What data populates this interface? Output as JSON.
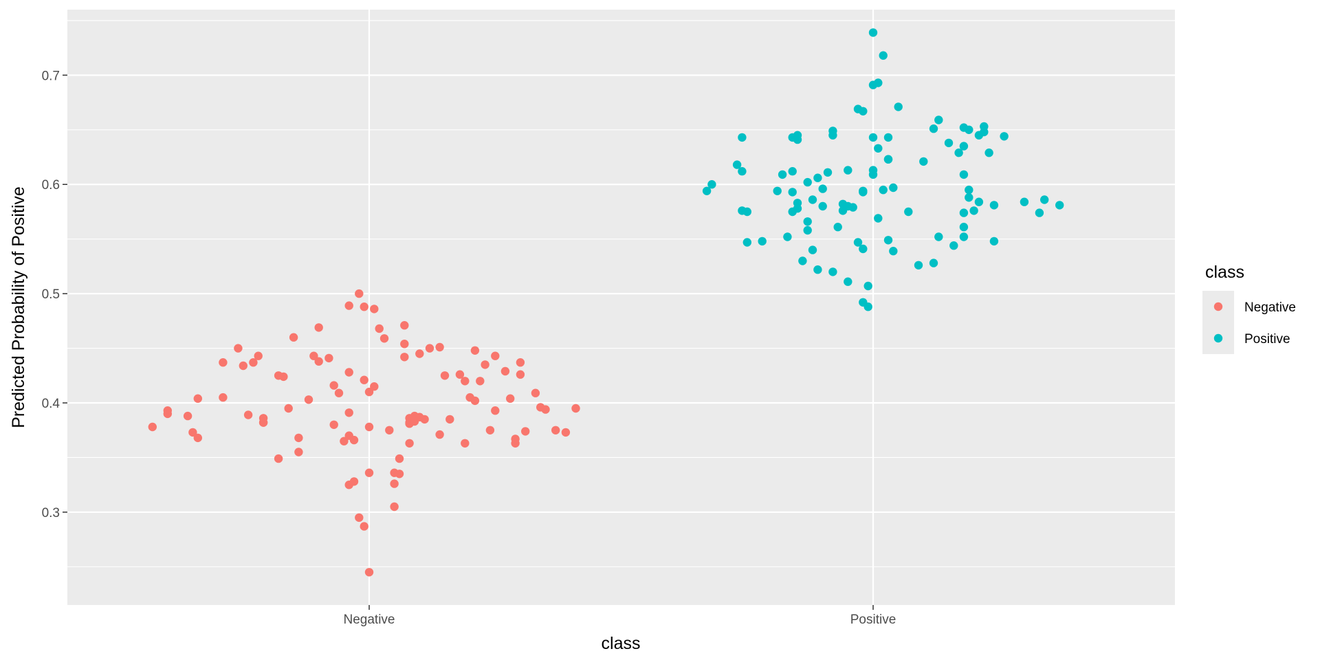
{
  "chart_data": {
    "type": "scatter",
    "title": "",
    "xlabel": "class",
    "ylabel": "Predicted Probability of Positive",
    "x_categories": [
      "Negative",
      "Positive"
    ],
    "ylim": [
      0.215,
      0.76
    ],
    "y_ticks": [
      0.3,
      0.4,
      0.5,
      0.6,
      0.7
    ],
    "y_tick_labels": [
      "0.3",
      "0.4",
      "0.5",
      "0.6",
      "0.7"
    ],
    "grid": true,
    "jitter": true,
    "legend": {
      "title": "class",
      "placement": "right",
      "entries": [
        "Negative",
        "Positive"
      ]
    },
    "colors": {
      "Negative": "#F8766D",
      "Positive": "#00BFC4",
      "panel_background": "#EBEBEB",
      "gridline": "#FFFFFF"
    },
    "series": [
      {
        "name": "Negative",
        "category": "Negative",
        "points": [
          [
            -0.43,
            0.378
          ],
          [
            -0.4,
            0.393
          ],
          [
            -0.4,
            0.39
          ],
          [
            -0.36,
            0.388
          ],
          [
            -0.35,
            0.373
          ],
          [
            -0.34,
            0.368
          ],
          [
            -0.34,
            0.404
          ],
          [
            -0.29,
            0.405
          ],
          [
            -0.29,
            0.437
          ],
          [
            -0.26,
            0.45
          ],
          [
            -0.25,
            0.434
          ],
          [
            -0.24,
            0.389
          ],
          [
            -0.23,
            0.437
          ],
          [
            -0.22,
            0.443
          ],
          [
            -0.21,
            0.382
          ],
          [
            -0.21,
            0.386
          ],
          [
            -0.21,
            0.382
          ],
          [
            -0.18,
            0.425
          ],
          [
            -0.17,
            0.424
          ],
          [
            -0.18,
            0.349
          ],
          [
            -0.16,
            0.395
          ],
          [
            -0.15,
            0.46
          ],
          [
            -0.14,
            0.355
          ],
          [
            -0.14,
            0.368
          ],
          [
            -0.12,
            0.403
          ],
          [
            -0.11,
            0.443
          ],
          [
            -0.1,
            0.469
          ],
          [
            -0.1,
            0.438
          ],
          [
            -0.08,
            0.441
          ],
          [
            -0.07,
            0.416
          ],
          [
            -0.07,
            0.38
          ],
          [
            -0.06,
            0.409
          ],
          [
            -0.05,
            0.365
          ],
          [
            -0.04,
            0.37
          ],
          [
            -0.04,
            0.325
          ],
          [
            -0.04,
            0.428
          ],
          [
            -0.04,
            0.391
          ],
          [
            -0.04,
            0.489
          ],
          [
            -0.03,
            0.366
          ],
          [
            -0.03,
            0.328
          ],
          [
            -0.02,
            0.5
          ],
          [
            -0.02,
            0.295
          ],
          [
            -0.01,
            0.488
          ],
          [
            -0.01,
            0.287
          ],
          [
            -0.01,
            0.421
          ],
          [
            0.0,
            0.378
          ],
          [
            0.0,
            0.41
          ],
          [
            0.0,
            0.336
          ],
          [
            0.0,
            0.245
          ],
          [
            0.01,
            0.486
          ],
          [
            0.01,
            0.415
          ],
          [
            0.02,
            0.468
          ],
          [
            0.03,
            0.459
          ],
          [
            0.04,
            0.375
          ],
          [
            0.05,
            0.305
          ],
          [
            0.05,
            0.326
          ],
          [
            0.05,
            0.336
          ],
          [
            0.06,
            0.335
          ],
          [
            0.06,
            0.349
          ],
          [
            0.07,
            0.471
          ],
          [
            0.07,
            0.442
          ],
          [
            0.07,
            0.454
          ],
          [
            0.08,
            0.363
          ],
          [
            0.08,
            0.386
          ],
          [
            0.08,
            0.381
          ],
          [
            0.08,
            0.382
          ],
          [
            0.09,
            0.383
          ],
          [
            0.09,
            0.388
          ],
          [
            0.09,
            0.384
          ],
          [
            0.09,
            0.386
          ],
          [
            0.1,
            0.387
          ],
          [
            0.1,
            0.445
          ],
          [
            0.11,
            0.385
          ],
          [
            0.12,
            0.45
          ],
          [
            0.14,
            0.451
          ],
          [
            0.14,
            0.371
          ],
          [
            0.15,
            0.425
          ],
          [
            0.16,
            0.385
          ],
          [
            0.18,
            0.426
          ],
          [
            0.19,
            0.363
          ],
          [
            0.19,
            0.42
          ],
          [
            0.2,
            0.405
          ],
          [
            0.21,
            0.448
          ],
          [
            0.21,
            0.402
          ],
          [
            0.22,
            0.42
          ],
          [
            0.23,
            0.435
          ],
          [
            0.24,
            0.375
          ],
          [
            0.25,
            0.443
          ],
          [
            0.25,
            0.393
          ],
          [
            0.27,
            0.429
          ],
          [
            0.28,
            0.404
          ],
          [
            0.29,
            0.363
          ],
          [
            0.29,
            0.367
          ],
          [
            0.3,
            0.426
          ],
          [
            0.3,
            0.437
          ],
          [
            0.31,
            0.374
          ],
          [
            0.33,
            0.409
          ],
          [
            0.34,
            0.396
          ],
          [
            0.35,
            0.394
          ],
          [
            0.37,
            0.375
          ],
          [
            0.39,
            0.373
          ],
          [
            0.41,
            0.395
          ]
        ]
      },
      {
        "name": "Positive",
        "category": "Positive",
        "points": [
          [
            -0.33,
            0.594
          ],
          [
            -0.32,
            0.6
          ],
          [
            -0.27,
            0.618
          ],
          [
            -0.26,
            0.612
          ],
          [
            -0.26,
            0.576
          ],
          [
            -0.26,
            0.643
          ],
          [
            -0.25,
            0.575
          ],
          [
            -0.25,
            0.547
          ],
          [
            -0.22,
            0.548
          ],
          [
            -0.19,
            0.594
          ],
          [
            -0.18,
            0.609
          ],
          [
            -0.17,
            0.552
          ],
          [
            -0.16,
            0.643
          ],
          [
            -0.16,
            0.575
          ],
          [
            -0.16,
            0.593
          ],
          [
            -0.16,
            0.612
          ],
          [
            -0.15,
            0.583
          ],
          [
            -0.15,
            0.578
          ],
          [
            -0.15,
            0.645
          ],
          [
            -0.15,
            0.641
          ],
          [
            -0.14,
            0.53
          ],
          [
            -0.13,
            0.566
          ],
          [
            -0.13,
            0.558
          ],
          [
            -0.13,
            0.602
          ],
          [
            -0.12,
            0.586
          ],
          [
            -0.12,
            0.54
          ],
          [
            -0.11,
            0.606
          ],
          [
            -0.11,
            0.522
          ],
          [
            -0.1,
            0.596
          ],
          [
            -0.1,
            0.58
          ],
          [
            -0.09,
            0.611
          ],
          [
            -0.08,
            0.52
          ],
          [
            -0.08,
            0.649
          ],
          [
            -0.08,
            0.645
          ],
          [
            -0.07,
            0.561
          ],
          [
            -0.06,
            0.576
          ],
          [
            -0.06,
            0.582
          ],
          [
            -0.05,
            0.613
          ],
          [
            -0.05,
            0.58
          ],
          [
            -0.05,
            0.511
          ],
          [
            -0.04,
            0.579
          ],
          [
            -0.03,
            0.547
          ],
          [
            -0.03,
            0.669
          ],
          [
            -0.02,
            0.593
          ],
          [
            -0.02,
            0.594
          ],
          [
            -0.02,
            0.667
          ],
          [
            -0.02,
            0.541
          ],
          [
            -0.02,
            0.492
          ],
          [
            -0.01,
            0.507
          ],
          [
            -0.01,
            0.488
          ],
          [
            0.0,
            0.739
          ],
          [
            0.0,
            0.613
          ],
          [
            0.0,
            0.609
          ],
          [
            0.0,
            0.691
          ],
          [
            0.0,
            0.643
          ],
          [
            0.01,
            0.693
          ],
          [
            0.01,
            0.633
          ],
          [
            0.01,
            0.569
          ],
          [
            0.02,
            0.595
          ],
          [
            0.02,
            0.718
          ],
          [
            0.03,
            0.549
          ],
          [
            0.03,
            0.643
          ],
          [
            0.03,
            0.623
          ],
          [
            0.03,
            0.623
          ],
          [
            0.04,
            0.597
          ],
          [
            0.04,
            0.539
          ],
          [
            0.05,
            0.671
          ],
          [
            0.07,
            0.575
          ],
          [
            0.09,
            0.526
          ],
          [
            0.1,
            0.621
          ],
          [
            0.12,
            0.528
          ],
          [
            0.12,
            0.651
          ],
          [
            0.13,
            0.659
          ],
          [
            0.13,
            0.552
          ],
          [
            0.15,
            0.638
          ],
          [
            0.16,
            0.544
          ],
          [
            0.17,
            0.629
          ],
          [
            0.18,
            0.652
          ],
          [
            0.18,
            0.574
          ],
          [
            0.18,
            0.609
          ],
          [
            0.18,
            0.635
          ],
          [
            0.18,
            0.561
          ],
          [
            0.18,
            0.552
          ],
          [
            0.19,
            0.595
          ],
          [
            0.19,
            0.588
          ],
          [
            0.19,
            0.65
          ],
          [
            0.2,
            0.576
          ],
          [
            0.21,
            0.645
          ],
          [
            0.21,
            0.584
          ],
          [
            0.22,
            0.653
          ],
          [
            0.22,
            0.648
          ],
          [
            0.23,
            0.629
          ],
          [
            0.24,
            0.581
          ],
          [
            0.24,
            0.548
          ],
          [
            0.26,
            0.644
          ],
          [
            0.3,
            0.584
          ],
          [
            0.33,
            0.574
          ],
          [
            0.34,
            0.586
          ],
          [
            0.37,
            0.581
          ]
        ]
      }
    ]
  }
}
